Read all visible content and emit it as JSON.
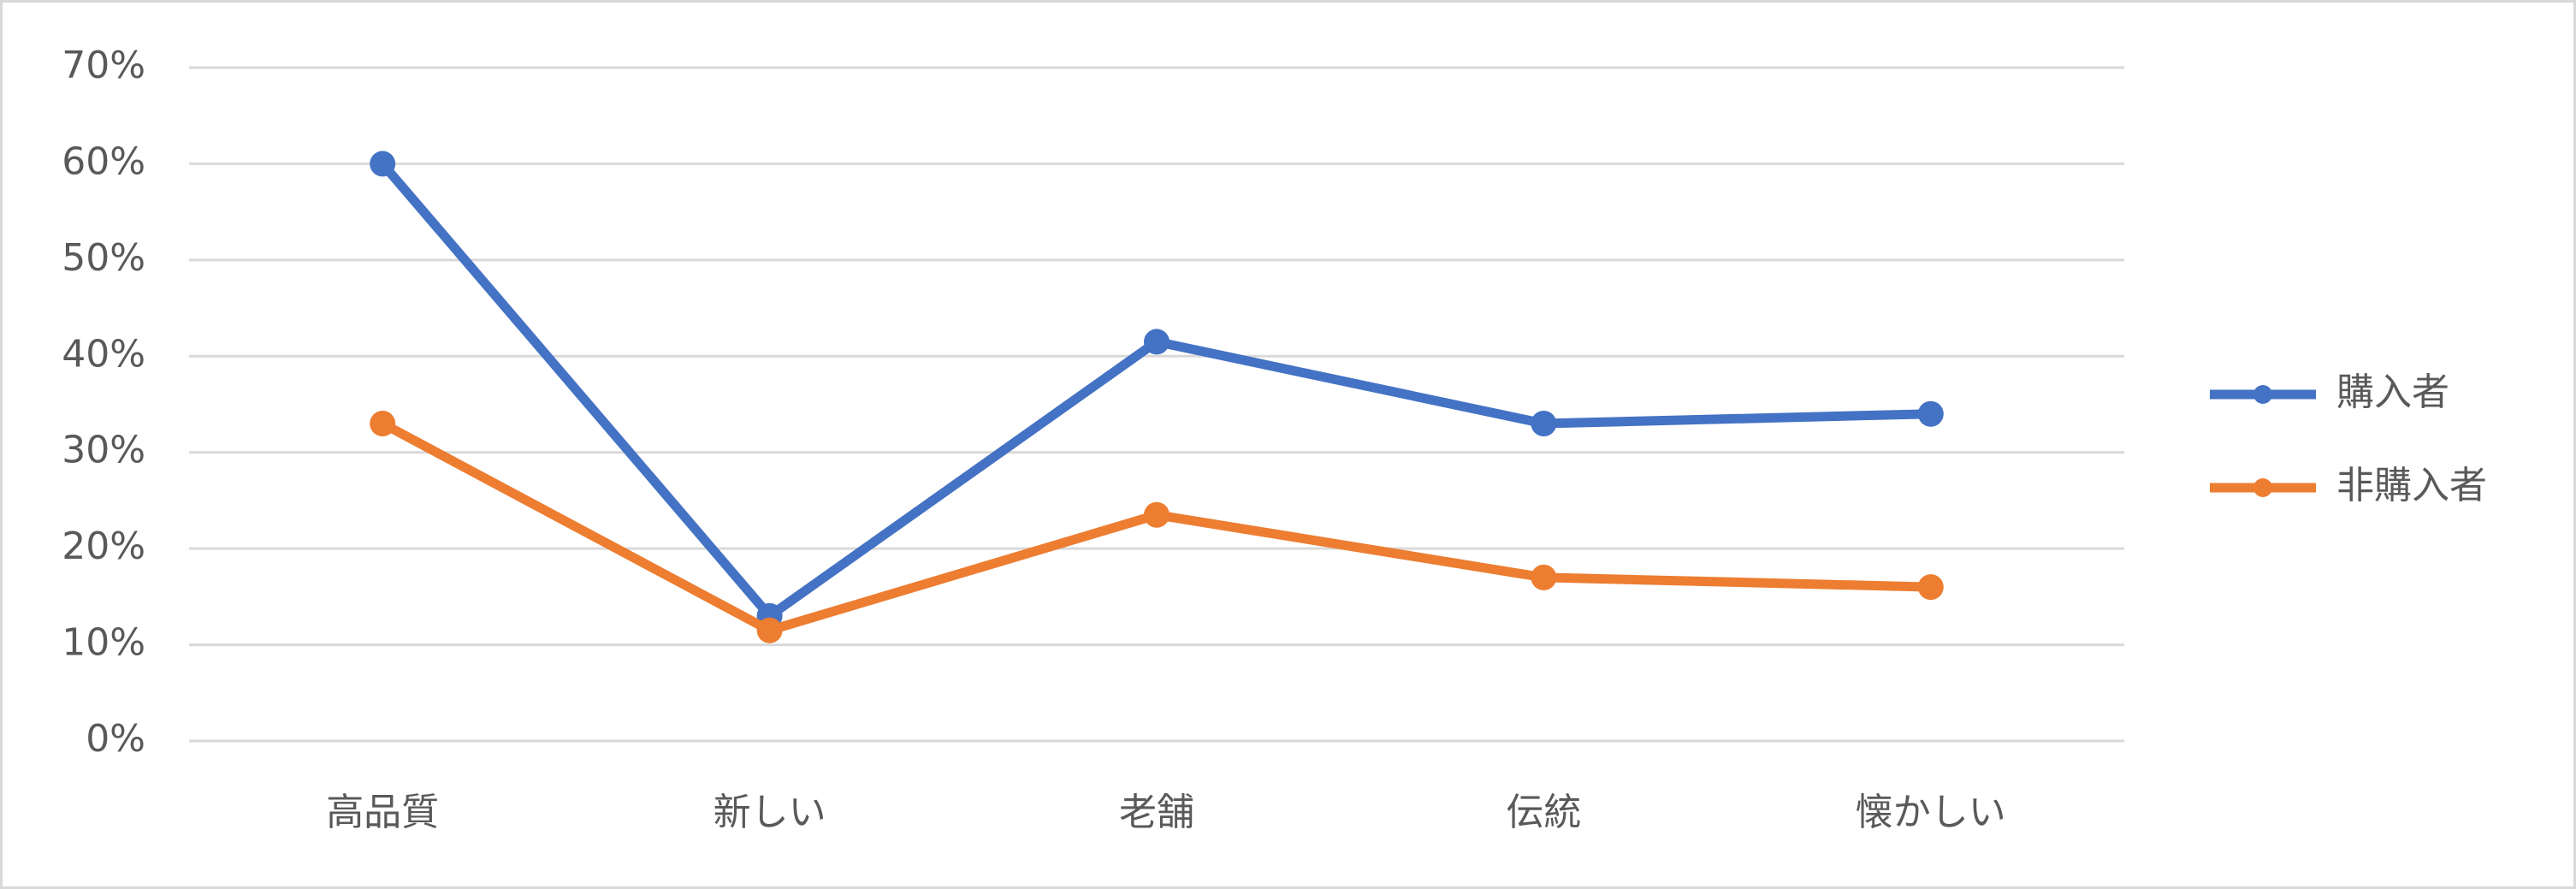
{
  "chart_data": {
    "type": "line",
    "categories": [
      "高品質",
      "新しい",
      "老舗",
      "伝統",
      "懐かしい"
    ],
    "series": [
      {
        "name": "購入者",
        "color": "#4472c4",
        "values": [
          60,
          13,
          41.5,
          33,
          34
        ]
      },
      {
        "name": "非購入者",
        "color": "#ed7d31",
        "values": [
          33,
          11.5,
          23.5,
          17,
          16
        ]
      }
    ],
    "ylim": [
      0,
      70
    ],
    "yticks": [
      {
        "value": 0,
        "label": "0%"
      },
      {
        "value": 10,
        "label": "10%"
      },
      {
        "value": 20,
        "label": "20%"
      },
      {
        "value": 30,
        "label": "30%"
      },
      {
        "value": 40,
        "label": "40%"
      },
      {
        "value": 50,
        "label": "50%"
      },
      {
        "value": 60,
        "label": "60%"
      },
      {
        "value": 70,
        "label": "70%"
      }
    ],
    "grid": true,
    "legend": "right"
  }
}
